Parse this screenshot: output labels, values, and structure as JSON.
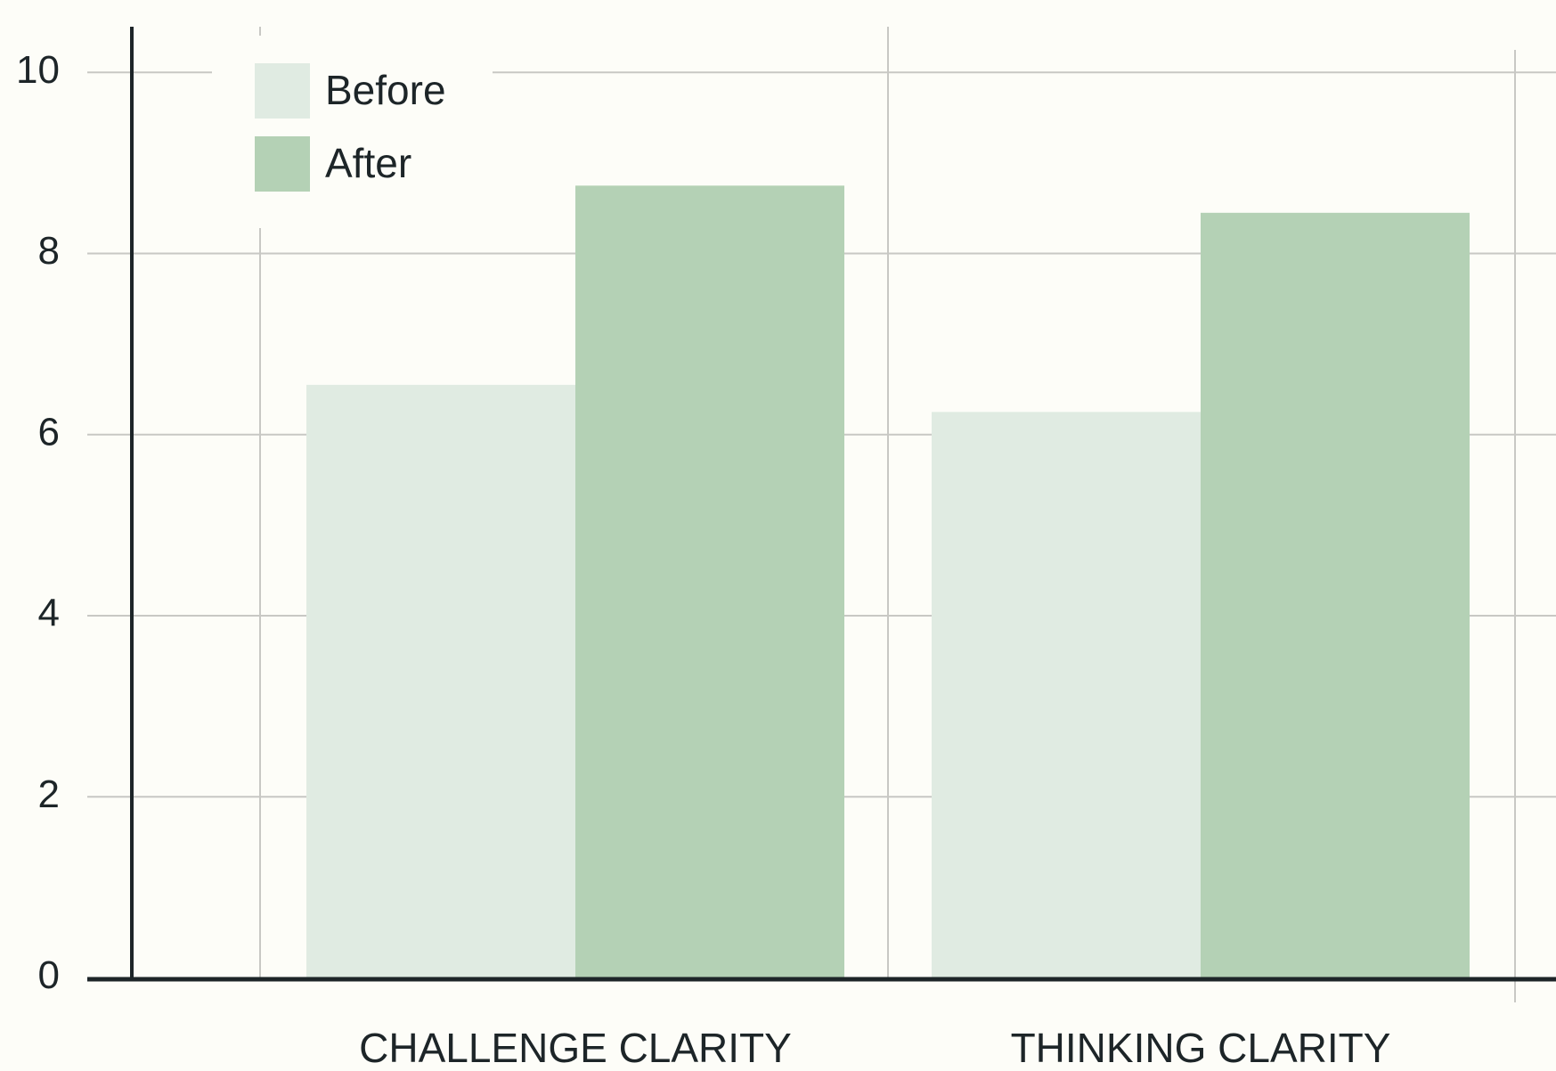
{
  "chart_data": {
    "type": "bar",
    "categories": [
      "CHALLENGE CLARITY",
      "THINKING CLARITY"
    ],
    "series": [
      {
        "name": "Before",
        "color": "#e0ebe2",
        "values": [
          6.55,
          6.25
        ]
      },
      {
        "name": "After",
        "color": "#b4d1b5",
        "values": [
          8.75,
          8.45
        ]
      }
    ],
    "ylim": [
      0,
      10.5
    ],
    "yticks": [
      0,
      2,
      4,
      6,
      8,
      10
    ],
    "grid": true,
    "legend": "upper left"
  }
}
